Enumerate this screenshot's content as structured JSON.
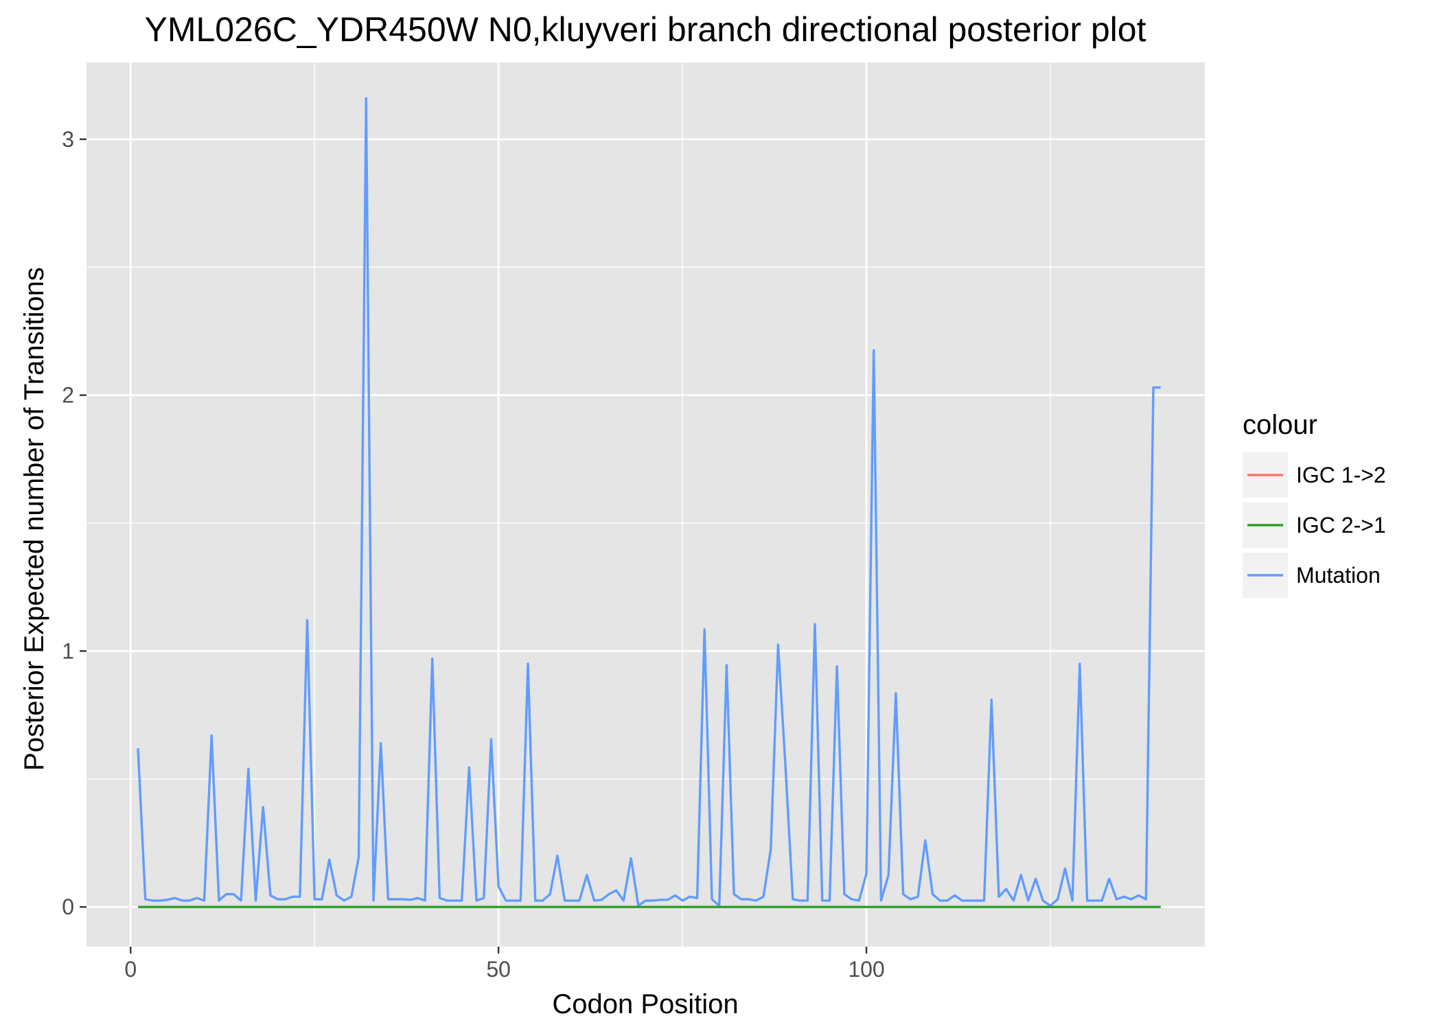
{
  "chart_data": {
    "type": "line",
    "title": "YML026C_YDR450W N0,kluyveri branch directional posterior plot",
    "xlabel": "Codon Position",
    "ylabel": "Posterior Expected number of Transitions",
    "xlim": [
      -6,
      146
    ],
    "ylim": [
      -0.155,
      3.3
    ],
    "x_major_ticks": [
      0,
      50,
      100
    ],
    "x_tick_labels": [
      "0",
      "50",
      "100"
    ],
    "x_minor_ticks": [
      25,
      75,
      125
    ],
    "y_major_ticks": [
      0,
      1,
      2,
      3
    ],
    "y_tick_labels": [
      "0",
      "1",
      "2",
      "3"
    ],
    "y_minor_ticks": [
      0.5,
      1.5,
      2.5
    ],
    "grid": true,
    "legend": {
      "title": "colour",
      "position": "right"
    },
    "colors": {
      "panel": "#e5e5e5",
      "grid": "#ffffff",
      "tick": "#333333"
    },
    "series": [
      {
        "name": "IGC 1->2",
        "color": "#f8766d",
        "x": [
          1,
          140
        ],
        "values": [
          0,
          0
        ]
      },
      {
        "name": "IGC 2->1",
        "color": "#2ca02c",
        "x": [
          1,
          140
        ],
        "values": [
          0,
          0
        ]
      },
      {
        "name": "Mutation",
        "color": "#619cff",
        "x": [
          1,
          2,
          3,
          4,
          5,
          6,
          7,
          8,
          9,
          10,
          11,
          12,
          13,
          14,
          15,
          16,
          17,
          18,
          19,
          20,
          21,
          22,
          23,
          24,
          25,
          26,
          27,
          28,
          29,
          30,
          31,
          32,
          33,
          34,
          35,
          36,
          37,
          38,
          39,
          40,
          41,
          42,
          43,
          44,
          45,
          46,
          47,
          48,
          49,
          50,
          51,
          52,
          53,
          54,
          55,
          56,
          57,
          58,
          59,
          60,
          61,
          62,
          63,
          64,
          65,
          66,
          67,
          68,
          69,
          70,
          71,
          72,
          73,
          74,
          75,
          76,
          77,
          78,
          79,
          80,
          81,
          82,
          83,
          84,
          85,
          86,
          87,
          88,
          89,
          90,
          91,
          92,
          93,
          94,
          95,
          96,
          97,
          98,
          99,
          100,
          101,
          102,
          103,
          104,
          105,
          106,
          107,
          108,
          109,
          110,
          111,
          112,
          113,
          114,
          115,
          116,
          117,
          118,
          119,
          120,
          121,
          122,
          123,
          124,
          125,
          126,
          127,
          128,
          129,
          130,
          131,
          132,
          133,
          134,
          135,
          136,
          137,
          138,
          139,
          140
        ],
        "values": [
          0.62,
          0.03,
          0.025,
          0.025,
          0.028,
          0.035,
          0.025,
          0.025,
          0.035,
          0.025,
          0.67,
          0.025,
          0.05,
          0.05,
          0.025,
          0.54,
          0.025,
          0.39,
          0.045,
          0.03,
          0.03,
          0.04,
          0.04,
          1.12,
          0.03,
          0.03,
          0.185,
          0.045,
          0.025,
          0.04,
          0.195,
          3.16,
          0.025,
          0.64,
          0.03,
          0.03,
          0.03,
          0.028,
          0.035,
          0.025,
          0.97,
          0.035,
          0.025,
          0.025,
          0.025,
          0.545,
          0.025,
          0.035,
          0.655,
          0.08,
          0.025,
          0.025,
          0.025,
          0.95,
          0.025,
          0.025,
          0.05,
          0.2,
          0.025,
          0.025,
          0.025,
          0.125,
          0.025,
          0.028,
          0.05,
          0.065,
          0.025,
          0.19,
          0.005,
          0.025,
          0.025,
          0.028,
          0.028,
          0.045,
          0.025,
          0.04,
          0.035,
          1.085,
          0.03,
          0.005,
          0.945,
          0.05,
          0.03,
          0.03,
          0.025,
          0.04,
          0.225,
          1.025,
          0.55,
          0.03,
          0.025,
          0.025,
          1.105,
          0.025,
          0.025,
          0.94,
          0.05,
          0.03,
          0.025,
          0.13,
          2.175,
          0.025,
          0.125,
          0.835,
          0.05,
          0.03,
          0.04,
          0.26,
          0.05,
          0.025,
          0.025,
          0.045,
          0.025,
          0.025,
          0.025,
          0.025,
          0.81,
          0.04,
          0.07,
          0.025,
          0.125,
          0.025,
          0.11,
          0.025,
          0.005,
          0.03,
          0.15,
          0.025,
          0.95,
          0.025,
          0.025,
          0.025,
          0.11,
          0.03,
          0.04,
          0.03,
          0.045,
          0.03,
          2.03,
          2.03
        ]
      }
    ]
  }
}
